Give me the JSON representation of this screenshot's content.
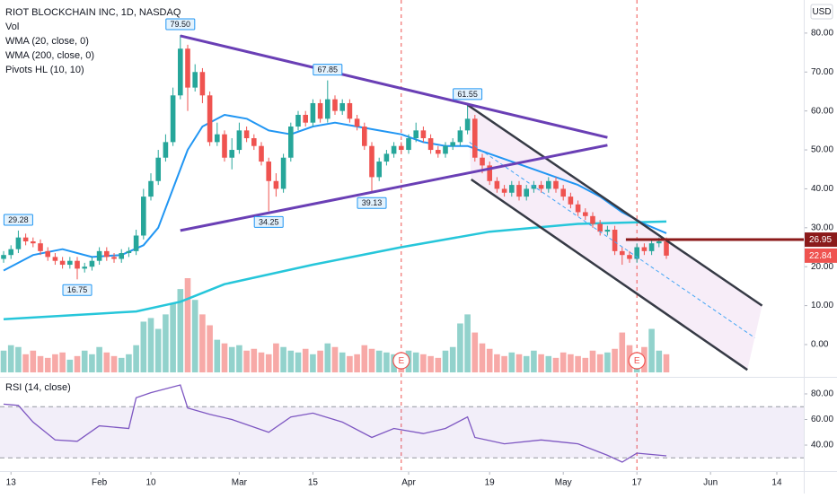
{
  "chart_data": {
    "type": "candlestick",
    "title": "RIOT BLOCKCHAIN INC, 1D, NASDAQ",
    "currency": "USD",
    "up_color": "#26a69a",
    "down_color": "#ef5350",
    "xlim": [
      -0.49,
      108.66
    ],
    "xticks": [
      {
        "value": 1,
        "label": "13"
      },
      {
        "value": 13,
        "label": "Feb"
      },
      {
        "value": 20,
        "label": "10"
      },
      {
        "value": 32,
        "label": "Mar"
      },
      {
        "value": 42,
        "label": "15"
      },
      {
        "value": 55,
        "label": "Apr"
      },
      {
        "value": 66,
        "label": "19"
      },
      {
        "value": 76,
        "label": "May"
      },
      {
        "value": 86,
        "label": "17"
      },
      {
        "value": 96,
        "label": "Jun"
      },
      {
        "value": 105,
        "label": "14"
      }
    ],
    "ylim": [
      -8.3,
      88.5
    ],
    "yticks": [
      {
        "value": 0,
        "label": "0.00"
      },
      {
        "value": 10,
        "label": "10.00"
      },
      {
        "value": 20,
        "label": "20.00"
      },
      {
        "value": 30,
        "label": "30.00"
      },
      {
        "value": 40,
        "label": "40.00"
      },
      {
        "value": 50,
        "label": "50.00"
      },
      {
        "value": 60,
        "label": "60.00"
      },
      {
        "value": 70,
        "label": "70.00"
      },
      {
        "value": 80,
        "label": "80.00"
      }
    ],
    "open": [
      22.0,
      23.0,
      24.5,
      27.5,
      26.5,
      26.0,
      24.0,
      22.5,
      21.5,
      20.5,
      21.5,
      19.5,
      20.0,
      21.5,
      24.0,
      22.5,
      22.0,
      23.5,
      24.0,
      28.0,
      38.0,
      42.0,
      48.0,
      52.0,
      64.0,
      76.0,
      66.0,
      70.0,
      64.0,
      52.0,
      54.0,
      48.0,
      50.0,
      55.0,
      53.0,
      51.0,
      47.0,
      42.0,
      40.0,
      48.0,
      56.0,
      59.0,
      57.0,
      62.0,
      58.0,
      63.0,
      60.0,
      62.0,
      58.0,
      56.0,
      51.0,
      43.0,
      47.0,
      49.0,
      51.0,
      50.0,
      53.0,
      55.0,
      53.0,
      50.0,
      49.0,
      51.0,
      52.0,
      55.0,
      58.0,
      48.0,
      46.0,
      42.0,
      40.0,
      39.0,
      41.0,
      38.0,
      40.0,
      41.0,
      40.0,
      42.0,
      40.0,
      38.0,
      36.0,
      34.0,
      33.0,
      31.0,
      29.0,
      29.5,
      24.0,
      23.0,
      22.0,
      25.0,
      24.0,
      26.0,
      26.5
    ],
    "high": [
      24,
      25.5,
      29.28,
      28.5,
      27.5,
      27,
      25,
      23.5,
      22.5,
      22.5,
      22.5,
      21,
      22.5,
      25,
      25,
      23.5,
      24.5,
      25,
      29.5,
      40,
      44,
      50,
      54,
      66,
      79.5,
      77,
      72,
      71,
      65,
      57,
      55,
      53,
      57,
      56,
      54,
      52,
      48,
      44,
      49,
      57,
      60,
      60,
      63,
      63,
      67.85,
      64,
      63,
      63,
      59,
      57,
      52,
      48,
      50,
      52,
      52,
      54,
      57,
      56,
      54,
      51,
      52,
      53,
      56,
      61.55,
      59,
      49,
      47,
      43,
      41,
      42,
      42,
      41,
      42,
      42,
      43,
      43,
      41,
      39,
      37,
      35,
      34,
      32,
      30.5,
      30.5,
      25,
      24,
      26,
      26,
      27,
      27.5,
      27.5
    ],
    "low": [
      21,
      22,
      23.5,
      25.5,
      25,
      23,
      21.5,
      20.5,
      19.5,
      19.5,
      16.75,
      18.5,
      19,
      20.5,
      21.5,
      21,
      21,
      22.5,
      23,
      27,
      37,
      41,
      47,
      51,
      63,
      60,
      65,
      62,
      51,
      51,
      47,
      45,
      49,
      52,
      50,
      46,
      34.25,
      38,
      39,
      47,
      55,
      56,
      56,
      57,
      57,
      59,
      59,
      57,
      55,
      50,
      39.13,
      42,
      46,
      48,
      49,
      49,
      52,
      52,
      49,
      48,
      48,
      50,
      51,
      54,
      47,
      44,
      41,
      39,
      38,
      38,
      37,
      37,
      39,
      39,
      39,
      39,
      37,
      35,
      33,
      32,
      30,
      28,
      28,
      23,
      20.5,
      21,
      21,
      23,
      23,
      25,
      22
    ],
    "close": [
      23.0,
      24.5,
      27.5,
      26.5,
      26.0,
      24.0,
      22.5,
      21.5,
      20.5,
      21.5,
      19.5,
      20.0,
      21.5,
      24.0,
      22.5,
      22.0,
      23.5,
      24.0,
      28.0,
      38.0,
      42.0,
      48.0,
      52.0,
      64.0,
      76.0,
      66.0,
      70.0,
      64.0,
      52.0,
      54.0,
      48.0,
      50.0,
      55.0,
      53.0,
      51.0,
      47.0,
      42.0,
      40.0,
      48.0,
      56.0,
      59.0,
      57.0,
      62.0,
      58.0,
      63.0,
      60.0,
      62.0,
      58.0,
      56.0,
      51.0,
      43.0,
      47.0,
      49.0,
      51.0,
      50.0,
      53.0,
      55.0,
      53.0,
      50.0,
      49.0,
      51.0,
      52.0,
      55.0,
      58.0,
      48.0,
      46.0,
      42.0,
      40.0,
      39.0,
      41.0,
      38.0,
      40.0,
      41.0,
      40.0,
      42.0,
      40.0,
      38.0,
      36.0,
      34.0,
      33.0,
      31.0,
      29.0,
      29.5,
      24.0,
      23.0,
      22.0,
      25.0,
      24.0,
      26.0,
      26.5,
      22.84
    ],
    "volume": {
      "name": "Vol",
      "values": [
        12,
        15,
        14,
        10,
        12,
        9,
        8,
        10,
        11,
        7,
        9,
        12,
        10,
        14,
        11,
        9,
        8,
        10,
        15,
        28,
        30,
        24,
        32,
        38,
        46,
        52,
        40,
        32,
        26,
        18,
        16,
        14,
        15,
        12,
        13,
        11,
        10,
        16,
        14,
        12,
        11,
        13,
        10,
        12,
        16,
        14,
        11,
        9,
        10,
        15,
        13,
        12,
        11,
        10,
        9,
        12,
        11,
        10,
        9,
        8,
        12,
        14,
        27,
        32,
        22,
        16,
        13,
        10,
        9,
        11,
        10,
        9,
        12,
        10,
        9,
        8,
        11,
        10,
        9,
        8,
        12,
        10,
        11,
        13,
        22,
        15,
        11,
        14,
        24,
        12,
        10
      ]
    },
    "wma20": {
      "name": "WMA (20, close, 0)",
      "color": "#2196f3",
      "x": [
        0,
        4,
        8,
        12,
        16,
        19,
        21,
        23,
        25,
        27,
        30,
        33,
        36,
        39,
        42,
        45,
        48,
        51,
        54,
        57,
        60,
        63,
        66,
        69,
        72,
        75,
        78,
        81,
        84,
        87,
        90
      ],
      "values": [
        19,
        23,
        24.5,
        22.5,
        23,
        25.5,
        30,
        40,
        50,
        56,
        59,
        58,
        55,
        54,
        56,
        57,
        56,
        55,
        54,
        52,
        51,
        51,
        49,
        47,
        45,
        43,
        41,
        38,
        34,
        31,
        28.6
      ]
    },
    "wma200": {
      "name": "WMA (200, close, 0)",
      "color": "#26c6da",
      "x": [
        0,
        18,
        24,
        30,
        42,
        54,
        66,
        78,
        90
      ],
      "values": [
        6.5,
        8.5,
        11,
        15.5,
        20.5,
        25,
        29,
        31,
        31.6
      ]
    },
    "pivots": {
      "name": "Pivots HL (10, 10)",
      "points": [
        {
          "x": 2,
          "value": 29.28,
          "label": "29.28",
          "side": "high"
        },
        {
          "x": 10,
          "value": 16.75,
          "label": "16.75",
          "side": "low"
        },
        {
          "x": 24,
          "value": 79.5,
          "label": "79.50",
          "side": "high"
        },
        {
          "x": 36,
          "value": 34.25,
          "label": "34.25",
          "side": "low"
        },
        {
          "x": 44,
          "value": 67.85,
          "label": "67.85",
          "side": "high"
        },
        {
          "x": 50,
          "value": 39.13,
          "label": "39.13",
          "side": "low"
        },
        {
          "x": 63,
          "value": 61.55,
          "label": "61.55",
          "side": "high"
        }
      ]
    },
    "trendlines": [
      {
        "color": "#6a3fb5",
        "x": [
          24,
          82
        ],
        "values": [
          79.3,
          53.2
        ]
      },
      {
        "color": "#6a3fb5",
        "x": [
          24,
          82
        ],
        "values": [
          29.3,
          51.2
        ]
      }
    ],
    "channel": {
      "color": "#363a45",
      "fill": "#f3e5f5",
      "mid_color": "#42a5f5",
      "upper": {
        "x": [
          63,
          103
        ],
        "values": [
          61.55,
          10
        ]
      },
      "lower": {
        "x": [
          63.5,
          101
        ],
        "values": [
          42.4,
          -6.5
        ]
      }
    },
    "level": {
      "value": 26.95,
      "label": "26.95",
      "from": 84.5,
      "color": "#8b1a1a"
    },
    "last_price": {
      "value": 22.84,
      "label": "22.84",
      "color": "#ef5350"
    },
    "earnings": [
      {
        "x": 54,
        "label": "E"
      },
      {
        "x": 86,
        "label": "E"
      }
    ],
    "rsi": {
      "name": "RSI (14, close)",
      "color": "#7e57c2",
      "band": [
        30,
        70
      ],
      "ylim": [
        23.2,
        89.8
      ],
      "yticks": [
        {
          "value": 40,
          "label": "40.00"
        },
        {
          "value": 60,
          "label": "60.00"
        },
        {
          "value": 80,
          "label": "80.00"
        }
      ],
      "x": [
        0,
        2,
        4,
        7,
        10,
        13,
        17,
        18,
        20,
        24,
        25,
        28,
        31,
        36,
        39,
        42,
        46,
        50,
        53,
        57,
        60,
        63,
        64,
        68,
        73,
        78,
        82,
        84,
        86,
        90
      ],
      "values": [
        72,
        71,
        58,
        44,
        43,
        55,
        53,
        77,
        81,
        87,
        69,
        64,
        60,
        50,
        62,
        65,
        58,
        46,
        53,
        49,
        53,
        62,
        46,
        41,
        44,
        41,
        32,
        26.7,
        33.7,
        31.6
      ]
    }
  }
}
